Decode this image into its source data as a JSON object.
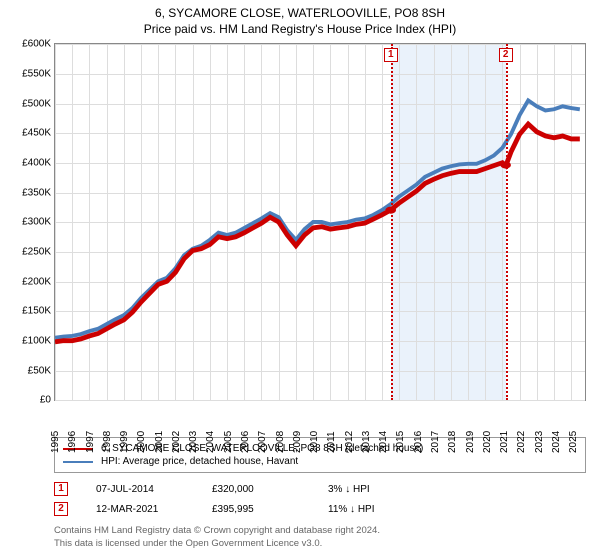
{
  "title": {
    "line1": "6, SYCAMORE CLOSE, WATERLOOVILLE, PO8 8SH",
    "line2": "Price paid vs. HM Land Registry's House Price Index (HPI)"
  },
  "chart": {
    "type": "line",
    "background_color": "#ffffff",
    "grid_color": "#dddddd",
    "border_color": "#888888",
    "shaded_band_color": "#eaf2fb",
    "shaded_band_xstart": 2014.5,
    "shaded_band_xend": 2021.2,
    "ylim": [
      0,
      600000
    ],
    "ytick_step": 50000,
    "ytick_labels": [
      "£0",
      "£50K",
      "£100K",
      "£150K",
      "£200K",
      "£250K",
      "£300K",
      "£350K",
      "£400K",
      "£450K",
      "£500K",
      "£550K",
      "£600K"
    ],
    "xlim": [
      1995,
      2025.8
    ],
    "xticks": [
      1995,
      1996,
      1997,
      1998,
      1999,
      2000,
      2001,
      2002,
      2003,
      2004,
      2005,
      2006,
      2007,
      2008,
      2009,
      2010,
      2011,
      2012,
      2013,
      2014,
      2015,
      2016,
      2017,
      2018,
      2019,
      2020,
      2021,
      2022,
      2023,
      2024,
      2025
    ],
    "label_fontsize": 10,
    "series": [
      {
        "name": "6, SYCAMORE CLOSE, WATERLOOVILLE, PO8 8SH (detached house)",
        "color": "#cc0000",
        "line_width": 1.6,
        "data": [
          [
            1995,
            98000
          ],
          [
            1995.5,
            100000
          ],
          [
            1996,
            100000
          ],
          [
            1996.5,
            103000
          ],
          [
            1997,
            108000
          ],
          [
            1997.5,
            112000
          ],
          [
            1998,
            120000
          ],
          [
            1998.5,
            128000
          ],
          [
            1999,
            135000
          ],
          [
            1999.5,
            148000
          ],
          [
            2000,
            165000
          ],
          [
            2000.5,
            180000
          ],
          [
            2001,
            195000
          ],
          [
            2001.5,
            200000
          ],
          [
            2002,
            215000
          ],
          [
            2002.5,
            238000
          ],
          [
            2003,
            252000
          ],
          [
            2003.5,
            255000
          ],
          [
            2004,
            262000
          ],
          [
            2004.5,
            275000
          ],
          [
            2005,
            272000
          ],
          [
            2005.5,
            275000
          ],
          [
            2006,
            282000
          ],
          [
            2006.5,
            290000
          ],
          [
            2007,
            298000
          ],
          [
            2007.5,
            308000
          ],
          [
            2008,
            300000
          ],
          [
            2008.5,
            278000
          ],
          [
            2009,
            260000
          ],
          [
            2009.5,
            278000
          ],
          [
            2010,
            290000
          ],
          [
            2010.5,
            292000
          ],
          [
            2011,
            288000
          ],
          [
            2011.5,
            290000
          ],
          [
            2012,
            292000
          ],
          [
            2012.5,
            296000
          ],
          [
            2013,
            298000
          ],
          [
            2013.5,
            305000
          ],
          [
            2014,
            312000
          ],
          [
            2014.5,
            320000
          ],
          [
            2015,
            332000
          ],
          [
            2015.5,
            342000
          ],
          [
            2016,
            352000
          ],
          [
            2016.5,
            365000
          ],
          [
            2017,
            372000
          ],
          [
            2017.5,
            378000
          ],
          [
            2018,
            382000
          ],
          [
            2018.5,
            385000
          ],
          [
            2019,
            385000
          ],
          [
            2019.5,
            385000
          ],
          [
            2020,
            390000
          ],
          [
            2020.5,
            395000
          ],
          [
            2021,
            400000
          ],
          [
            2021.2,
            395000
          ],
          [
            2021.5,
            418000
          ],
          [
            2022,
            448000
          ],
          [
            2022.5,
            465000
          ],
          [
            2023,
            452000
          ],
          [
            2023.5,
            445000
          ],
          [
            2024,
            442000
          ],
          [
            2024.5,
            445000
          ],
          [
            2025,
            440000
          ],
          [
            2025.5,
            440000
          ]
        ]
      },
      {
        "name": "HPI: Average price, detached house, Havant",
        "color": "#4a7ebb",
        "line_width": 1.3,
        "data": [
          [
            1995,
            105000
          ],
          [
            1995.5,
            107000
          ],
          [
            1996,
            108000
          ],
          [
            1996.5,
            111000
          ],
          [
            1997,
            116000
          ],
          [
            1997.5,
            120000
          ],
          [
            1998,
            128000
          ],
          [
            1998.5,
            136000
          ],
          [
            1999,
            143000
          ],
          [
            1999.5,
            155000
          ],
          [
            2000,
            172000
          ],
          [
            2000.5,
            186000
          ],
          [
            2001,
            200000
          ],
          [
            2001.5,
            206000
          ],
          [
            2002,
            222000
          ],
          [
            2002.5,
            244000
          ],
          [
            2003,
            255000
          ],
          [
            2003.5,
            260000
          ],
          [
            2004,
            270000
          ],
          [
            2004.5,
            282000
          ],
          [
            2005,
            278000
          ],
          [
            2005.5,
            282000
          ],
          [
            2006,
            290000
          ],
          [
            2006.5,
            298000
          ],
          [
            2007,
            306000
          ],
          [
            2007.5,
            315000
          ],
          [
            2008,
            308000
          ],
          [
            2008.5,
            286000
          ],
          [
            2009,
            270000
          ],
          [
            2009.5,
            288000
          ],
          [
            2010,
            300000
          ],
          [
            2010.5,
            300000
          ],
          [
            2011,
            296000
          ],
          [
            2011.5,
            298000
          ],
          [
            2012,
            300000
          ],
          [
            2012.5,
            304000
          ],
          [
            2013,
            306000
          ],
          [
            2013.5,
            312000
          ],
          [
            2014,
            320000
          ],
          [
            2014.5,
            330000
          ],
          [
            2015,
            343000
          ],
          [
            2015.5,
            353000
          ],
          [
            2016,
            363000
          ],
          [
            2016.5,
            376000
          ],
          [
            2017,
            383000
          ],
          [
            2017.5,
            390000
          ],
          [
            2018,
            394000
          ],
          [
            2018.5,
            397000
          ],
          [
            2019,
            398000
          ],
          [
            2019.5,
            398000
          ],
          [
            2020,
            404000
          ],
          [
            2020.5,
            412000
          ],
          [
            2021,
            425000
          ],
          [
            2021.5,
            448000
          ],
          [
            2022,
            480000
          ],
          [
            2022.5,
            505000
          ],
          [
            2023,
            495000
          ],
          [
            2023.5,
            488000
          ],
          [
            2024,
            490000
          ],
          [
            2024.5,
            495000
          ],
          [
            2025,
            492000
          ],
          [
            2025.5,
            490000
          ]
        ]
      }
    ],
    "sale_markers": [
      {
        "idx": "1",
        "x": 2014.51,
        "y": 320000
      },
      {
        "idx": "2",
        "x": 2021.19,
        "y": 395995
      }
    ],
    "marker_box_color": "#cc0000"
  },
  "legend": {
    "border_color": "#999999",
    "rows": [
      {
        "color": "#cc0000",
        "label": "6, SYCAMORE CLOSE, WATERLOOVILLE, PO8 8SH (detached house)"
      },
      {
        "color": "#4a7ebb",
        "label": "HPI: Average price, detached house, Havant"
      }
    ]
  },
  "sales_table": {
    "rows": [
      {
        "idx": "1",
        "date": "07-JUL-2014",
        "price": "£320,000",
        "delta": "3% ↓ HPI"
      },
      {
        "idx": "2",
        "date": "12-MAR-2021",
        "price": "£395,995",
        "delta": "11% ↓ HPI"
      }
    ]
  },
  "footer": {
    "line1": "Contains HM Land Registry data © Crown copyright and database right 2024.",
    "line2": "This data is licensed under the Open Government Licence v3.0."
  }
}
